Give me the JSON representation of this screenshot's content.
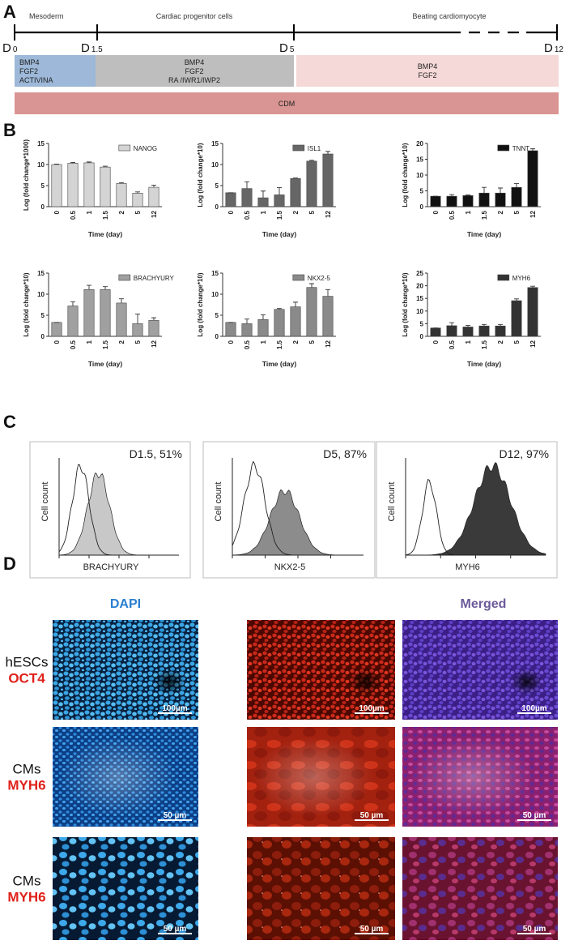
{
  "panel_labels": [
    "A",
    "B",
    "C",
    "D"
  ],
  "timeline": {
    "phases": [
      "Mesoderm",
      "Cardiac progenitor cells",
      "Beating cardiomyocyte"
    ],
    "days": [
      {
        "prefix": "D",
        "sub": "0"
      },
      {
        "prefix": "D",
        "sub": "1.5"
      },
      {
        "prefix": "D",
        "sub": "5"
      },
      {
        "prefix": "D",
        "sub": "12"
      }
    ],
    "media": [
      [
        "BMP4",
        "FGF2",
        "ACTIVINA"
      ],
      [
        "BMP4",
        "FGF2",
        "RA /IWR1/IWP2"
      ],
      [
        "BMP4",
        "FGF2"
      ]
    ],
    "base_medium": "CDM"
  },
  "chart_data": [
    {
      "type": "bar",
      "ylabel": "Log (fold change*1000)",
      "xlabel": "Time (day)",
      "categories": [
        "0",
        "0.5",
        "1",
        "1.5",
        "2",
        "5",
        "12"
      ],
      "series": [
        {
          "name": "NANOG",
          "color": "#d4d4d4",
          "values": [
            10,
            10.3,
            10.4,
            9.4,
            5.5,
            3.2,
            4.6
          ],
          "errors": [
            0.1,
            0.2,
            0.2,
            0.2,
            0.2,
            0.3,
            0.5
          ]
        }
      ],
      "ylim": [
        0,
        15
      ],
      "yticks": [
        0,
        5,
        10,
        15
      ]
    },
    {
      "type": "bar",
      "ylabel": "Log (fold change*10)",
      "xlabel": "Time (day)",
      "categories": [
        "0",
        "0.5",
        "1",
        "1.5",
        "2",
        "5",
        "12"
      ],
      "series": [
        {
          "name": "ISL1",
          "color": "#666666",
          "values": [
            3.3,
            4.3,
            2.1,
            2.8,
            6.7,
            10.8,
            12.5
          ],
          "errors": [
            0,
            1.6,
            1.6,
            1.7,
            0.1,
            0.2,
            0.6
          ]
        }
      ],
      "ylim": [
        0,
        15
      ],
      "yticks": [
        0,
        5,
        10,
        15
      ]
    },
    {
      "type": "bar",
      "ylabel": "Log (fold change*10)",
      "xlabel": "Time (day)",
      "categories": [
        "0",
        "0.5",
        "1",
        "1.5",
        "2",
        "5",
        "12"
      ],
      "series": [
        {
          "name": "TNNT",
          "color": "#111111",
          "values": [
            3.3,
            3.3,
            3.5,
            4.3,
            4.3,
            6.1,
            17.7
          ],
          "errors": [
            0,
            0.5,
            0.2,
            1.8,
            1.6,
            1.2,
            0.6
          ]
        }
      ],
      "ylim": [
        0,
        20
      ],
      "yticks": [
        0,
        5,
        10,
        15,
        20
      ]
    },
    {
      "type": "bar",
      "ylabel": "Log (fold change*10)",
      "xlabel": "Time (day)",
      "categories": [
        "0",
        "0.5",
        "1",
        "1.5",
        "2",
        "5",
        "12"
      ],
      "series": [
        {
          "name": "BRACHYURY",
          "color": "#a0a0a0",
          "values": [
            3.3,
            7.2,
            11.1,
            11.1,
            7.9,
            3,
            3.8
          ],
          "errors": [
            0,
            1,
            1,
            0.7,
            1,
            2.3,
            0.6
          ]
        }
      ],
      "ylim": [
        0,
        15
      ],
      "yticks": [
        0,
        5,
        10,
        15
      ]
    },
    {
      "type": "bar",
      "ylabel": "Log (fold change*10)",
      "xlabel": "Time (day)",
      "categories": [
        "0",
        "0.5",
        "1",
        "1.5",
        "2",
        "5",
        "12"
      ],
      "series": [
        {
          "name": "NKX2-5",
          "color": "#8a8a8a",
          "values": [
            3.3,
            3,
            4,
            6.4,
            7,
            11.6,
            9.5
          ],
          "errors": [
            0,
            1.1,
            1.1,
            0.2,
            1.1,
            0.9,
            1.6
          ]
        }
      ],
      "ylim": [
        0,
        15
      ],
      "yticks": [
        0,
        5,
        10,
        15
      ]
    },
    {
      "type": "bar",
      "ylabel": "Log (fold change*10)",
      "xlabel": "Time (day)",
      "categories": [
        "0",
        "0.5",
        "1",
        "1.5",
        "2",
        "5",
        "12"
      ],
      "series": [
        {
          "name": "MYH6",
          "color": "#333333",
          "values": [
            3.3,
            4.2,
            3.7,
            4.1,
            4.1,
            14.1,
            19.3
          ],
          "errors": [
            0,
            1.2,
            0.6,
            0.6,
            0.6,
            0.7,
            0.5
          ]
        }
      ],
      "ylim": [
        0,
        25
      ],
      "yticks": [
        0,
        5,
        10,
        15,
        20,
        25
      ]
    }
  ],
  "flow_cytometry": [
    {
      "annotation": "D1.5, 51%",
      "xlabel": "BRACHYURY",
      "ylabel": "Cell count"
    },
    {
      "annotation": "D5, 87%",
      "xlabel": "NKX2-5",
      "ylabel": "Cell count"
    },
    {
      "annotation": "D12, 97%",
      "xlabel": "MYH6",
      "ylabel": "Cell count"
    }
  ],
  "imaging": {
    "column_headers": [
      "DAPI",
      "Merged"
    ],
    "rows": [
      {
        "cell": "hESCs",
        "marker": "OCT4",
        "scale_bars": [
          "100µm",
          "100µm",
          "100µm"
        ]
      },
      {
        "cell": "CMs",
        "marker": "MYH6",
        "scale_bars": [
          "50 µm",
          "50 µm",
          "50 µm"
        ]
      },
      {
        "cell": "CMs",
        "marker": "MYH6",
        "scale_bars": [
          "50 µm",
          "50 µm",
          "50 µm"
        ]
      }
    ]
  }
}
